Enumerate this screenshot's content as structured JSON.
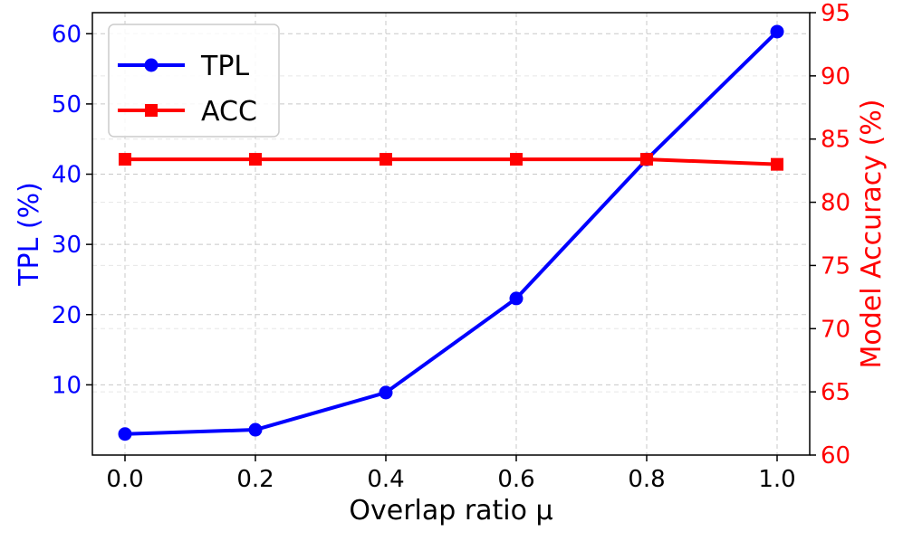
{
  "colors": {
    "tpl": "#0000ff",
    "acc": "#ff0000",
    "grid": "#c8c8c8",
    "axis": "#000000"
  },
  "chart_data": {
    "type": "line",
    "x": [
      0.0,
      0.2,
      0.4,
      0.6,
      0.8,
      1.0
    ],
    "x_tick_labels": [
      "0.0",
      "0.2",
      "0.4",
      "0.6",
      "0.8",
      "1.0"
    ],
    "xlabel": "Overlap ratio μ",
    "ylabel_left": "TPL (%)",
    "ylabel_right": "Model Accuracy (%)",
    "xlim": [
      -0.05,
      1.05
    ],
    "ylim_left": [
      0,
      63
    ],
    "ylim_right": [
      60,
      95
    ],
    "yticks_left": [
      10,
      20,
      30,
      40,
      50,
      60
    ],
    "yticks_right": [
      60,
      65,
      70,
      75,
      80,
      85,
      90,
      95
    ],
    "grid": true,
    "legend_position": "top-left",
    "series": [
      {
        "name": "TPL",
        "axis": "left",
        "marker": "circle",
        "color": "#0000ff",
        "values": [
          3.0,
          3.6,
          8.9,
          22.3,
          42.1,
          60.3
        ]
      },
      {
        "name": "ACC",
        "axis": "right",
        "marker": "square",
        "color": "#ff0000",
        "values": [
          83.4,
          83.4,
          83.4,
          83.4,
          83.4,
          83.0
        ]
      }
    ]
  }
}
